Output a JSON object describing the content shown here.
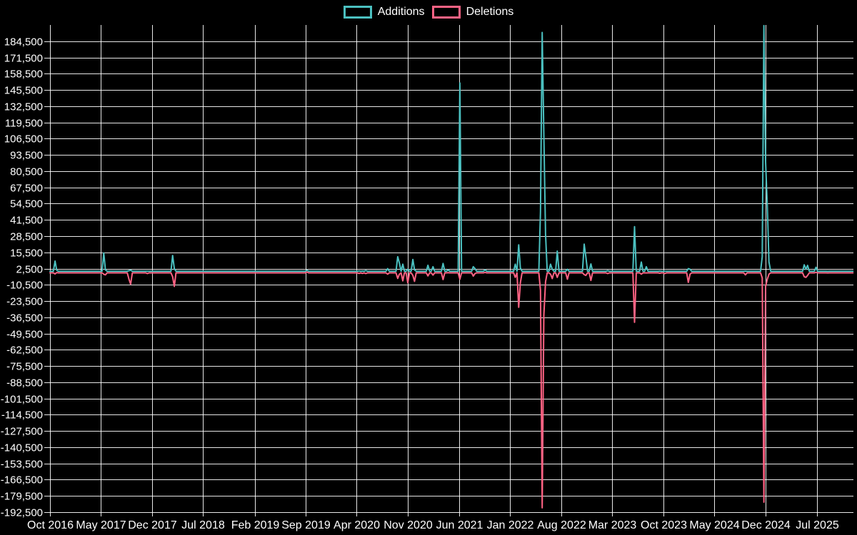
{
  "legend": [
    {
      "label": "Additions",
      "color": "#4bc0c0"
    },
    {
      "label": "Deletions",
      "color": "#ff6384"
    }
  ],
  "chart_data": {
    "type": "line",
    "title": "",
    "background_color": "#000000",
    "grid_color": "#ffffff",
    "text_color": "#ffffff",
    "grid_on": true,
    "legend_position": "top-center",
    "sampling": "weekly",
    "x_domain": [
      "2016-10-01",
      "2025-12-01"
    ],
    "y_domain": [
      -192500,
      197500
    ],
    "x_ticks": [
      {
        "date": "2016-10-01",
        "label": "Oct 2016"
      },
      {
        "date": "2017-05-01",
        "label": "May 2017"
      },
      {
        "date": "2017-12-01",
        "label": "Dec 2017"
      },
      {
        "date": "2018-07-01",
        "label": "Jul 2018"
      },
      {
        "date": "2019-02-01",
        "label": "Feb 2019"
      },
      {
        "date": "2019-09-01",
        "label": "Sep 2019"
      },
      {
        "date": "2020-04-01",
        "label": "Apr 2020"
      },
      {
        "date": "2020-11-01",
        "label": "Nov 2020"
      },
      {
        "date": "2021-06-01",
        "label": "Jun 2021"
      },
      {
        "date": "2022-01-01",
        "label": "Jan 2022"
      },
      {
        "date": "2022-08-01",
        "label": "Aug 2022"
      },
      {
        "date": "2023-03-01",
        "label": "Mar 2023"
      },
      {
        "date": "2023-10-01",
        "label": "Oct 2023"
      },
      {
        "date": "2024-05-01",
        "label": "May 2024"
      },
      {
        "date": "2024-12-01",
        "label": "Dec 2024"
      },
      {
        "date": "2025-07-01",
        "label": "Jul 2025"
      }
    ],
    "y_ticks": [
      {
        "value": 184500,
        "label": "184,500"
      },
      {
        "value": 171500,
        "label": "171,500"
      },
      {
        "value": 158500,
        "label": "158,500"
      },
      {
        "value": 145500,
        "label": "145,500"
      },
      {
        "value": 132500,
        "label": "132,500"
      },
      {
        "value": 119500,
        "label": "119,500"
      },
      {
        "value": 106500,
        "label": "106,500"
      },
      {
        "value": 93500,
        "label": "93,500"
      },
      {
        "value": 80500,
        "label": "80,500"
      },
      {
        "value": 67500,
        "label": "67,500"
      },
      {
        "value": 54500,
        "label": "54,500"
      },
      {
        "value": 41500,
        "label": "41,500"
      },
      {
        "value": 28500,
        "label": "28,500"
      },
      {
        "value": 15500,
        "label": "15,500"
      },
      {
        "value": 2500,
        "label": "2,500"
      },
      {
        "value": -10500,
        "label": "-10,500"
      },
      {
        "value": -23500,
        "label": "-23,500"
      },
      {
        "value": -36500,
        "label": "-36,500"
      },
      {
        "value": -49500,
        "label": "-49,500"
      },
      {
        "value": -62500,
        "label": "-62,500"
      },
      {
        "value": -75500,
        "label": "-75,500"
      },
      {
        "value": -88500,
        "label": "-88,500"
      },
      {
        "value": -101500,
        "label": "-101,500"
      },
      {
        "value": -114500,
        "label": "-114,500"
      },
      {
        "value": -127500,
        "label": "-127,500"
      },
      {
        "value": -140500,
        "label": "-140,500"
      },
      {
        "value": -153500,
        "label": "-153,500"
      },
      {
        "value": -166500,
        "label": "-166,500"
      },
      {
        "value": -179500,
        "label": "-179,500"
      },
      {
        "value": -192500,
        "label": "-192,500"
      }
    ],
    "series": [
      {
        "name": "Deletions",
        "color": "#ff6384",
        "key": "deletions"
      },
      {
        "name": "Additions",
        "color": "#4bc0c0",
        "key": "additions"
      }
    ],
    "baseline": {
      "additions": 400,
      "deletions": -900
    },
    "weeks": [
      {
        "date": "2016-10-23",
        "additions": 8500,
        "deletions": -1800
      },
      {
        "date": "2016-10-30",
        "additions": 1200,
        "deletions": -700
      },
      {
        "date": "2017-05-14",
        "additions": 15000,
        "deletions": -2000
      },
      {
        "date": "2017-05-21",
        "additions": 1500,
        "deletions": -2500
      },
      {
        "date": "2017-08-27",
        "additions": 800,
        "deletions": -6000
      },
      {
        "date": "2017-09-03",
        "additions": 1200,
        "deletions": -10000
      },
      {
        "date": "2017-11-12",
        "additions": 400,
        "deletions": -1500
      },
      {
        "date": "2018-02-25",
        "additions": 13000,
        "deletions": -4000
      },
      {
        "date": "2018-03-04",
        "additions": 2500,
        "deletions": -11800
      },
      {
        "date": "2019-09-08",
        "additions": 1200,
        "deletions": -300
      },
      {
        "date": "2020-04-12",
        "additions": 600,
        "deletions": -1400
      },
      {
        "date": "2020-04-26",
        "additions": 500,
        "deletions": -1400
      },
      {
        "date": "2020-05-10",
        "additions": 900,
        "deletions": -1500
      },
      {
        "date": "2020-08-09",
        "additions": 2500,
        "deletions": -2000
      },
      {
        "date": "2020-09-20",
        "additions": 12000,
        "deletions": -5400
      },
      {
        "date": "2020-09-27",
        "additions": 7000,
        "deletions": -2000
      },
      {
        "date": "2020-10-11",
        "additions": 6000,
        "deletions": -7300
      },
      {
        "date": "2020-11-01",
        "additions": 2000,
        "deletions": -8900
      },
      {
        "date": "2020-11-22",
        "additions": 9800,
        "deletions": -3000
      },
      {
        "date": "2020-11-29",
        "additions": 1500,
        "deletions": -7700
      },
      {
        "date": "2021-01-24",
        "additions": 5100,
        "deletions": -3400
      },
      {
        "date": "2021-02-14",
        "additions": 4000,
        "deletions": -2700
      },
      {
        "date": "2021-03-28",
        "additions": 6600,
        "deletions": -6300
      },
      {
        "date": "2021-04-18",
        "additions": 1500,
        "deletions": -800
      },
      {
        "date": "2021-06-06",
        "additions": 151000,
        "deletions": -6000
      },
      {
        "date": "2021-08-01",
        "additions": 4000,
        "deletions": -3500
      },
      {
        "date": "2021-08-08",
        "additions": 2500,
        "deletions": -1500
      },
      {
        "date": "2021-09-19",
        "additions": 1500,
        "deletions": -600
      },
      {
        "date": "2022-01-23",
        "additions": 6000,
        "deletions": -4500
      },
      {
        "date": "2022-02-06",
        "additions": 21500,
        "deletions": -28500
      },
      {
        "date": "2022-02-13",
        "additions": 3000,
        "deletions": -9000
      },
      {
        "date": "2022-05-08",
        "additions": 48000,
        "deletions": -15000
      },
      {
        "date": "2022-05-15",
        "additions": 191500,
        "deletions": -189000
      },
      {
        "date": "2022-05-22",
        "additions": 110000,
        "deletions": -35000
      },
      {
        "date": "2022-05-29",
        "additions": 30000,
        "deletions": -8000
      },
      {
        "date": "2022-06-19",
        "additions": 6000,
        "deletions": -2000
      },
      {
        "date": "2022-06-26",
        "additions": 2000,
        "deletions": -5500
      },
      {
        "date": "2022-07-17",
        "additions": 16500,
        "deletions": -4500
      },
      {
        "date": "2022-08-28",
        "additions": 2000,
        "deletions": -6000
      },
      {
        "date": "2022-11-06",
        "additions": 22000,
        "deletions": -2300
      },
      {
        "date": "2022-11-13",
        "additions": 12000,
        "deletions": -3000
      },
      {
        "date": "2022-12-04",
        "additions": 6200,
        "deletions": -7000
      },
      {
        "date": "2023-02-12",
        "additions": 800,
        "deletions": -1500
      },
      {
        "date": "2023-06-04",
        "additions": 36000,
        "deletions": -40500
      },
      {
        "date": "2023-07-02",
        "additions": 7700,
        "deletions": -2000
      },
      {
        "date": "2023-07-23",
        "additions": 4000,
        "deletions": -1000
      },
      {
        "date": "2023-09-17",
        "additions": 500,
        "deletions": -1200
      },
      {
        "date": "2023-10-08",
        "additions": 400,
        "deletions": -1500
      },
      {
        "date": "2024-01-14",
        "additions": 2500,
        "deletions": -8500
      },
      {
        "date": "2024-01-21",
        "additions": 2000,
        "deletions": -2000
      },
      {
        "date": "2024-09-08",
        "additions": 500,
        "deletions": -2500
      },
      {
        "date": "2024-11-17",
        "additions": 12000,
        "deletions": -5000
      },
      {
        "date": "2024-11-24",
        "additions": 197000,
        "deletions": -184500
      },
      {
        "date": "2024-12-01",
        "additions": 88000,
        "deletions": -12000
      },
      {
        "date": "2024-12-08",
        "additions": 53000,
        "deletions": -6000
      },
      {
        "date": "2024-12-15",
        "additions": 8000,
        "deletions": -2000
      },
      {
        "date": "2025-05-11",
        "additions": 5500,
        "deletions": -4000
      },
      {
        "date": "2025-05-18",
        "additions": 2000,
        "deletions": -4500
      },
      {
        "date": "2025-05-25",
        "additions": 5000,
        "deletions": -3000
      },
      {
        "date": "2025-06-29",
        "additions": 3500,
        "deletions": -500
      },
      {
        "date": "2025-08-17",
        "additions": 300,
        "deletions": -1000
      }
    ]
  }
}
